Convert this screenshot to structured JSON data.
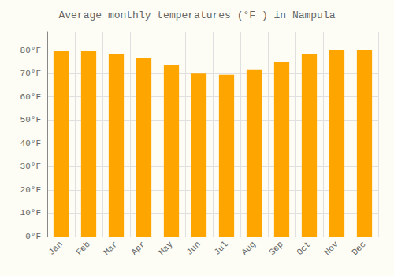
{
  "chart_data": {
    "type": "bar",
    "title": "Average monthly temperatures (°F ) in Nampula",
    "categories": [
      "Jan",
      "Feb",
      "Mar",
      "Apr",
      "May",
      "Jun",
      "Jul",
      "Aug",
      "Sep",
      "Oct",
      "Nov",
      "Dec"
    ],
    "values": [
      79.5,
      79.5,
      78.5,
      76.5,
      73.5,
      70.0,
      69.5,
      71.5,
      75.0,
      78.5,
      80.0,
      80.0
    ],
    "color": "#FFA500",
    "ylim": [
      0,
      88
    ],
    "yticks": [
      {
        "value": 0,
        "label": "0°F"
      },
      {
        "value": 10,
        "label": "10°F"
      },
      {
        "value": 20,
        "label": "20°F"
      },
      {
        "value": 30,
        "label": "30°F"
      },
      {
        "value": 40,
        "label": "40°F"
      },
      {
        "value": 50,
        "label": "50°F"
      },
      {
        "value": 60,
        "label": "60°F"
      },
      {
        "value": 70,
        "label": "70°F"
      },
      {
        "value": 80,
        "label": "80°F"
      }
    ],
    "grid": true
  }
}
